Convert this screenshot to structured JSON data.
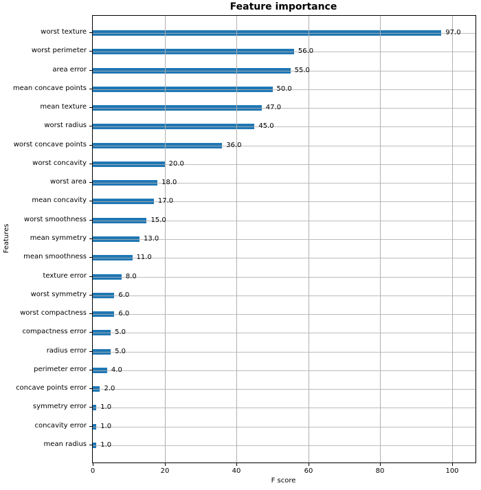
{
  "title": "Feature importance",
  "chart_data": {
    "type": "bar",
    "orientation": "horizontal",
    "title": "Feature importance",
    "xlabel": "F score",
    "ylabel": "Features",
    "categories": [
      "worst texture",
      "worst perimeter",
      "area error",
      "mean concave points",
      "mean texture",
      "worst radius",
      "worst concave points",
      "worst concavity",
      "worst area",
      "mean concavity",
      "worst smoothness",
      "mean symmetry",
      "mean smoothness",
      "texture error",
      "worst symmetry",
      "worst compactness",
      "compactness error",
      "radius error",
      "perimeter error",
      "concave points error",
      "symmetry error",
      "concavity error",
      "mean radius"
    ],
    "values": [
      97,
      56,
      55,
      50,
      47,
      45,
      36,
      20,
      18,
      17,
      15,
      13,
      11,
      8,
      6,
      6,
      5,
      5,
      4,
      2,
      1,
      1,
      1
    ],
    "value_labels": [
      "97.0",
      "56.0",
      "55.0",
      "50.0",
      "47.0",
      "45.0",
      "36.0",
      "20.0",
      "18.0",
      "17.0",
      "15.0",
      "13.0",
      "11.0",
      "8.0",
      "6.0",
      "6.0",
      "5.0",
      "5.0",
      "4.0",
      "2.0",
      "1.0",
      "1.0",
      "1.0"
    ],
    "xticks": [
      0,
      20,
      40,
      60,
      80,
      100
    ],
    "xtick_labels": [
      "0",
      "20",
      "40",
      "60",
      "80",
      "100"
    ],
    "xlim": [
      0,
      106.5
    ],
    "grid": true,
    "legend": false,
    "bar_color": "#1f77b4",
    "grid_color": "#b0b0b0",
    "axis_color": "#000000"
  }
}
